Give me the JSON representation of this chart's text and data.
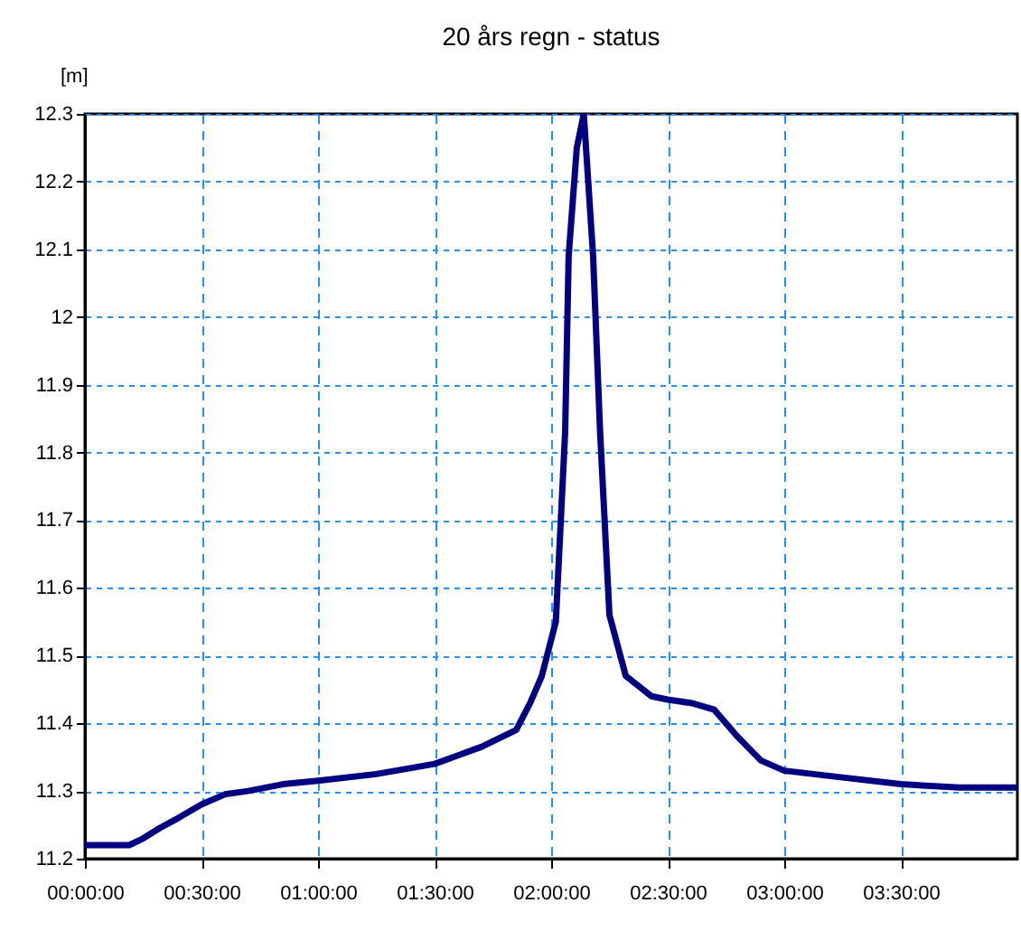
{
  "chart_data": {
    "type": "line",
    "title": "20 års regn - status",
    "ylabel": "[m]",
    "x": [
      0,
      0.1,
      0.19,
      0.25,
      0.32,
      0.4,
      0.5,
      0.6,
      0.7,
      0.85,
      1.0,
      1.25,
      1.5,
      1.7,
      1.85,
      1.91,
      1.96,
      2.02,
      2.06,
      2.075,
      2.11,
      2.14,
      2.18,
      2.21,
      2.25,
      2.32,
      2.43,
      2.5,
      2.6,
      2.7,
      2.8,
      2.9,
      3.0,
      3.25,
      3.5,
      3.75,
      4.0
    ],
    "series": [
      {
        "color": "#000080",
        "values": [
          11.22,
          11.22,
          11.22,
          11.23,
          11.245,
          11.26,
          11.28,
          11.295,
          11.3,
          11.31,
          11.315,
          11.325,
          11.34,
          11.365,
          11.39,
          11.43,
          11.47,
          11.55,
          11.83,
          12.09,
          12.25,
          12.3,
          12.09,
          11.83,
          11.56,
          11.47,
          11.44,
          11.435,
          11.43,
          11.42,
          11.38,
          11.345,
          11.33,
          11.32,
          11.31,
          11.305,
          11.305
        ]
      }
    ],
    "xlim": [
      0,
      4.0
    ],
    "xticks": [
      {
        "value": 0,
        "label": "00:00:00"
      },
      {
        "value": 0.5,
        "label": "00:30:00"
      },
      {
        "value": 1,
        "label": "01:00:00"
      },
      {
        "value": 1.5,
        "label": "01:30:00"
      },
      {
        "value": 2,
        "label": "02:00:00"
      },
      {
        "value": 2.5,
        "label": "02:30:00"
      },
      {
        "value": 3,
        "label": "03:00:00"
      },
      {
        "value": 3.5,
        "label": "03:30:00"
      }
    ],
    "ylim": [
      11.2,
      12.3
    ],
    "yticks": [
      11.2,
      11.3,
      11.4,
      11.5,
      11.6,
      11.7,
      11.8,
      11.9,
      12.0,
      12.1,
      12.2,
      12.3
    ],
    "grid": true,
    "marker": "none",
    "line_style": "solid"
  }
}
